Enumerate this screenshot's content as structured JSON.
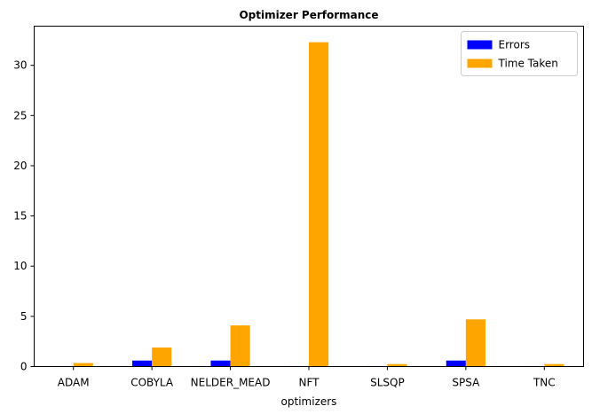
{
  "chart_data": {
    "type": "bar",
    "title": "Optimizer Performance",
    "xlabel": "optimizers",
    "ylabel": "",
    "categories": [
      "ADAM",
      "COBYLA",
      "NELDER_MEAD",
      "NFT",
      "SLSQP",
      "SPSA",
      "TNC"
    ],
    "series": [
      {
        "name": "Errors",
        "color": "#0000ff",
        "values": [
          0.05,
          0.6,
          0.6,
          0.05,
          0.05,
          0.6,
          0.05
        ]
      },
      {
        "name": "Time Taken",
        "color": "#ffa500",
        "values": [
          0.35,
          1.9,
          4.1,
          32.3,
          0.25,
          4.7,
          0.25
        ]
      }
    ],
    "ylim": [
      0,
      33.9
    ],
    "yticks": [
      0,
      5,
      10,
      15,
      20,
      25,
      30
    ],
    "grid": false,
    "legend_position": "top-right"
  }
}
